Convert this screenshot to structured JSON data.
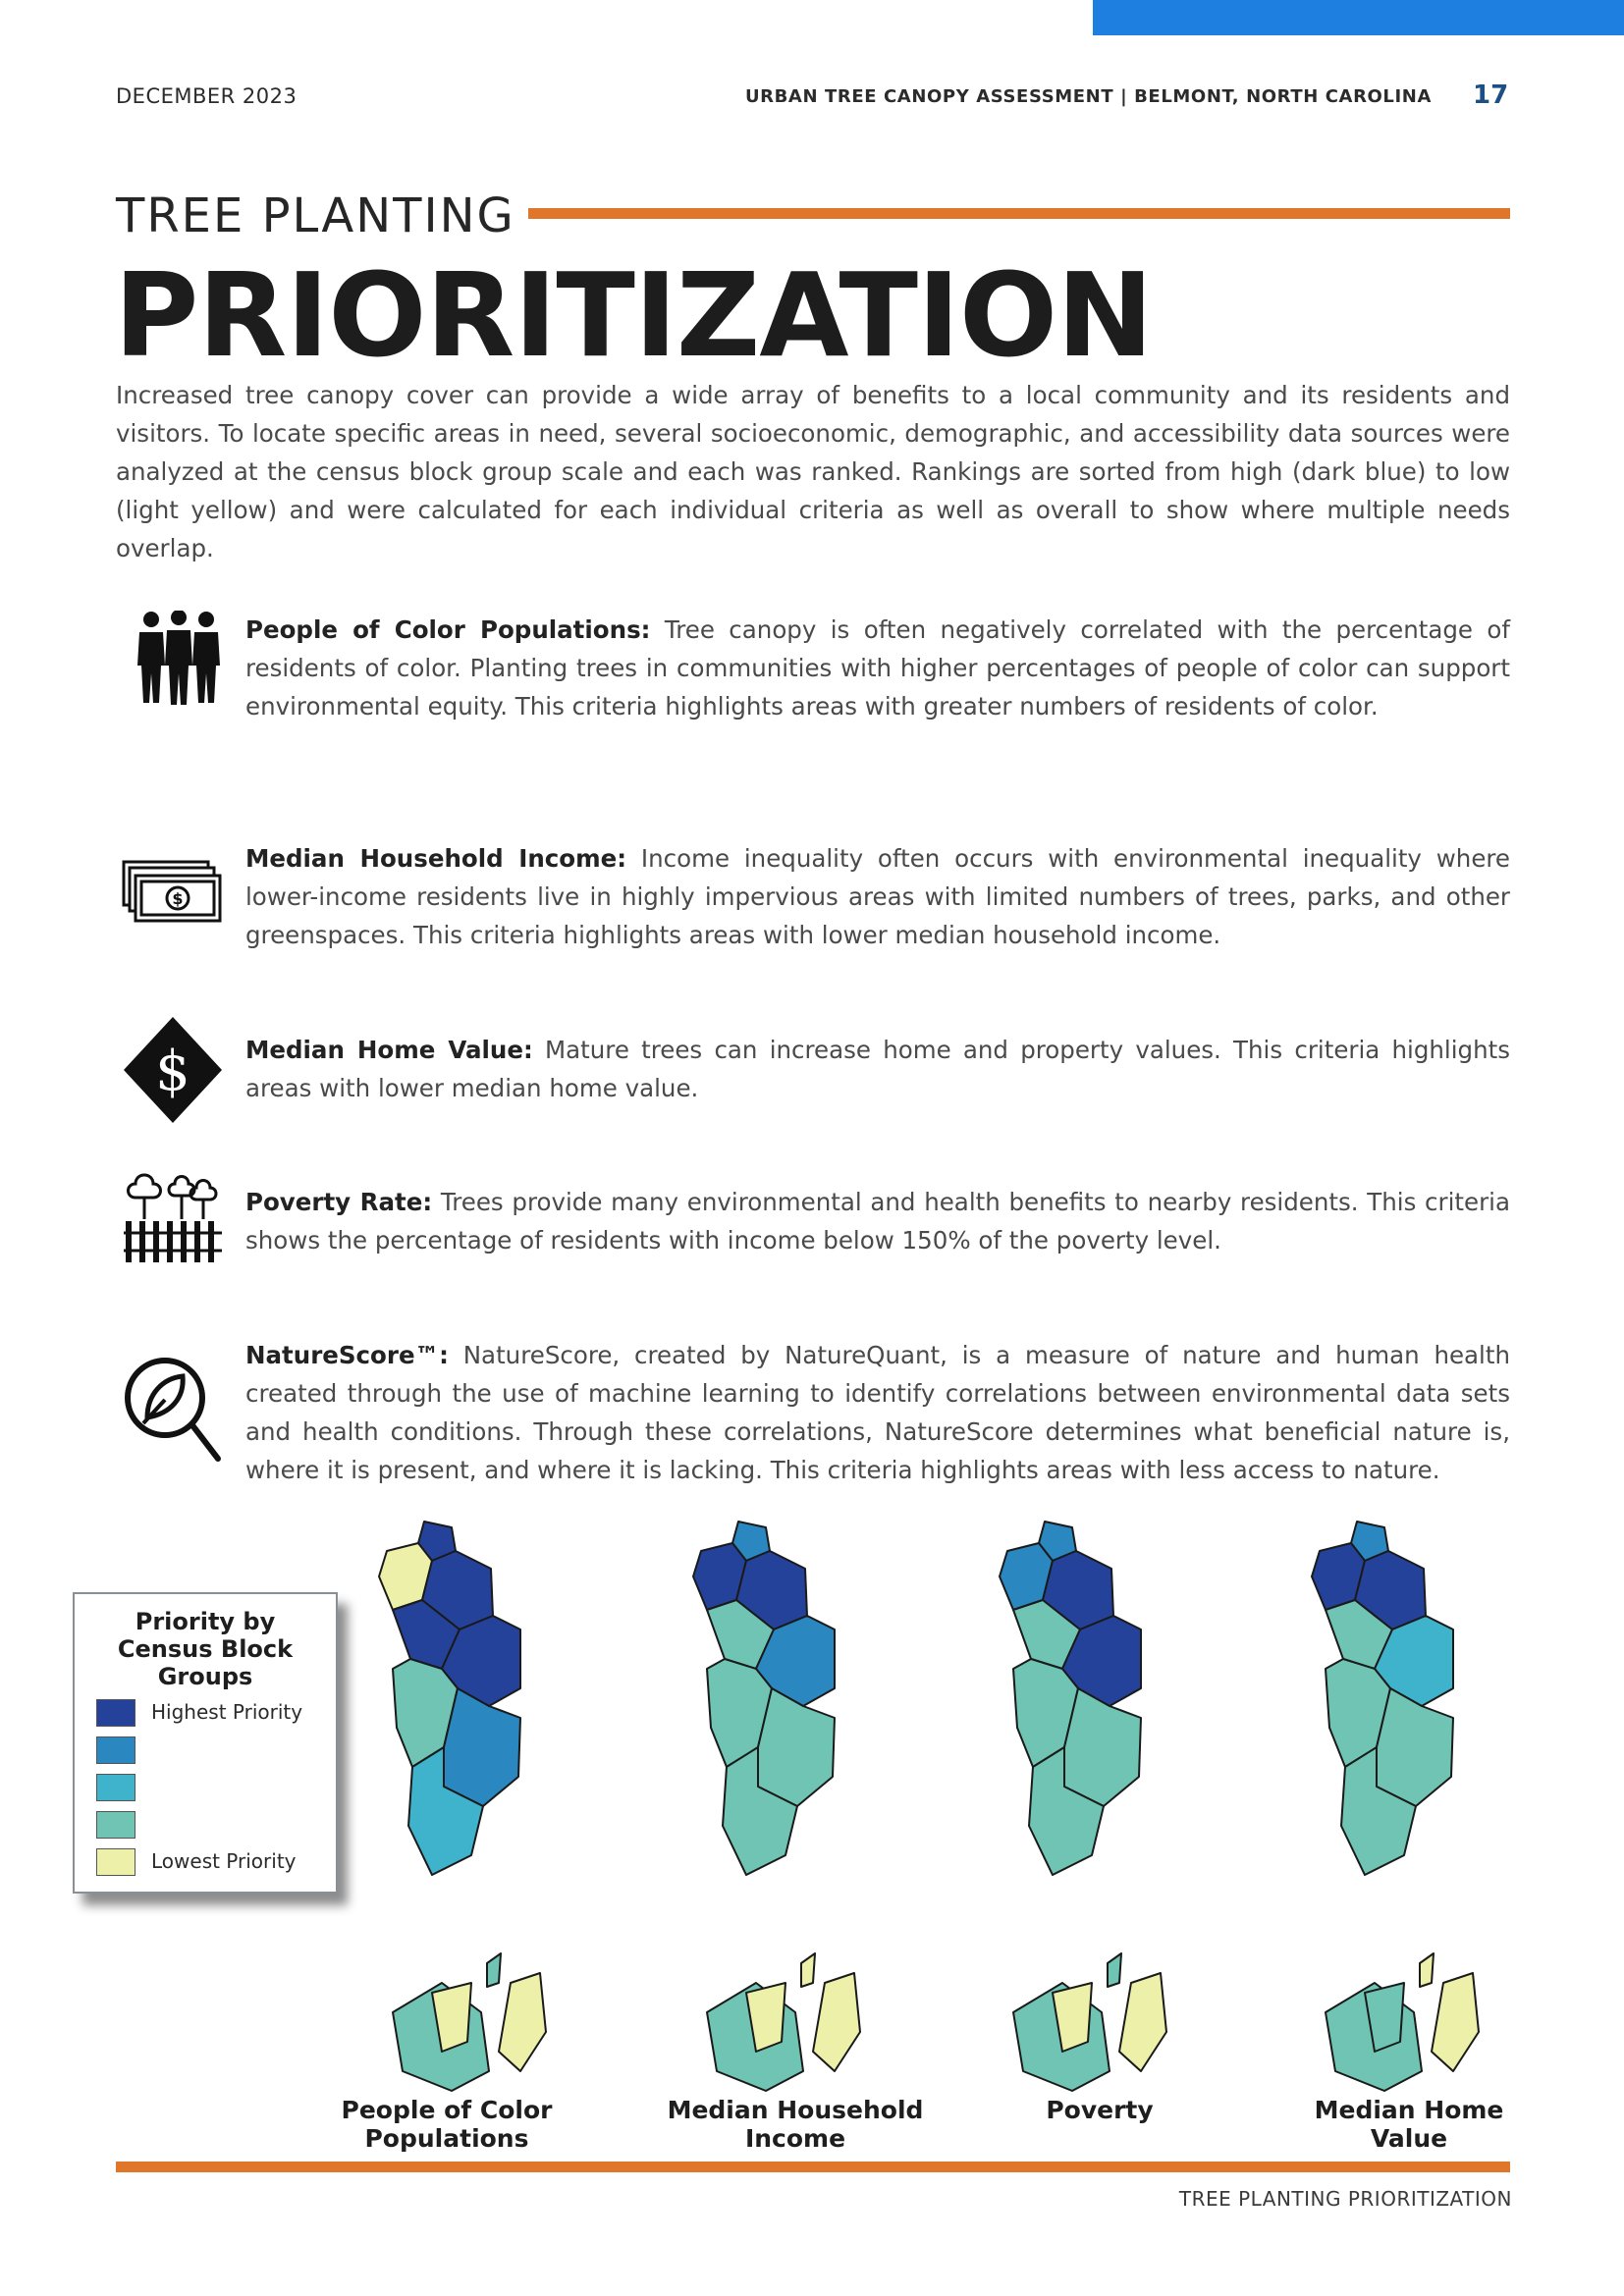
{
  "header": {
    "date": "DECEMBER 2023",
    "report_title": "URBAN TREE CANOPY ASSESSMENT | BELMONT, NORTH CAROLINA",
    "page_number": "17"
  },
  "title": {
    "small": "TREE PLANTING",
    "large": "PRIORITIZATION"
  },
  "intro": "Increased tree canopy cover can provide a wide array of benefits to a local community and its residents and visitors. To locate specific areas in need, several socioeconomic, demographic, and accessibility data sources were analyzed at the census block group scale and each was ranked. Rankings are sorted from high (dark blue) to low (light yellow) and were calculated for each individual criteria as well as overall to show where multiple needs overlap.",
  "criteria": [
    {
      "icon": "people-icon",
      "label": "People of Color Populations:",
      "text": "Tree canopy is often negatively correlated with the percentage of residents of color. Planting trees in communities with higher percentages of people of color can support environmental equity. This criteria highlights areas with greater numbers of residents of color."
    },
    {
      "icon": "money-icon",
      "label": "Median Household Income:",
      "text": "Income inequality often occurs with environmental inequality where lower-income residents live in highly impervious areas with limited numbers of trees, parks, and other greenspaces. This criteria highlights areas with lower median household income."
    },
    {
      "icon": "dollar-diamond-icon",
      "label": "Median Home Value:",
      "text": "Mature trees can increase home and property values. This criteria highlights areas with lower median home value."
    },
    {
      "icon": "trees-fence-icon",
      "label": "Poverty Rate:",
      "text": "Trees provide many environmental and health benefits to nearby residents. This criteria shows the percentage of residents with income below 150% of the poverty level."
    },
    {
      "icon": "leaf-magnifier-icon",
      "label": "NatureScore™:",
      "text": "NatureScore, created by NatureQuant, is a measure of nature and human health created through the use of machine learning to identify correlations between environmental data sets and health conditions. Through these correlations, NatureScore determines what beneficial nature is, where it is present, and where it is lacking. This criteria highlights areas with less access to nature."
    }
  ],
  "legend": {
    "title_lines": [
      "Priority by",
      "Census Block",
      "Groups"
    ],
    "high_label": "Highest Priority",
    "low_label": "Lowest Priority",
    "colors": [
      "#24429a",
      "#2a87c0",
      "#3fb2cc",
      "#6fc4b4",
      "#ecf0a8"
    ]
  },
  "maps": [
    {
      "label_lines": [
        "People of Color",
        "Populations"
      ]
    },
    {
      "label_lines": [
        "Median Household",
        "Income"
      ]
    },
    {
      "label_lines": [
        "Poverty"
      ]
    },
    {
      "label_lines": [
        "Median Home",
        "Value"
      ]
    }
  ],
  "footer": "TREE PLANTING PRIORITIZATION"
}
